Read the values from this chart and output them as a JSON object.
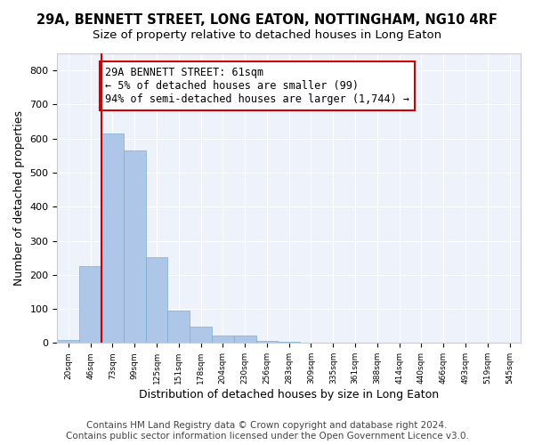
{
  "title1": "29A, BENNETT STREET, LONG EATON, NOTTINGHAM, NG10 4RF",
  "title2": "Size of property relative to detached houses in Long Eaton",
  "xlabel": "Distribution of detached houses by size in Long Eaton",
  "ylabel": "Number of detached properties",
  "bar_values": [
    10,
    225,
    615,
    565,
    252,
    95,
    48,
    22,
    22,
    7,
    3,
    0,
    0,
    0,
    0,
    0,
    0,
    0,
    0,
    0,
    0
  ],
  "bar_labels": [
    "20sqm",
    "46sqm",
    "73sqm",
    "99sqm",
    "125sqm",
    "151sqm",
    "178sqm",
    "204sqm",
    "230sqm",
    "256sqm",
    "283sqm",
    "309sqm",
    "335sqm",
    "361sqm",
    "388sqm",
    "414sqm",
    "440sqm",
    "466sqm",
    "493sqm",
    "519sqm",
    "545sqm"
  ],
  "bar_color": "#aec6e8",
  "bar_edge_color": "#7aaed4",
  "vline_color": "#cc0000",
  "annotation_text": "29A BENNETT STREET: 61sqm\n← 5% of detached houses are smaller (99)\n94% of semi-detached houses are larger (1,744) →",
  "annotation_box_color": "#ffffff",
  "annotation_box_edge": "#cc0000",
  "ylim": [
    0,
    850
  ],
  "yticks": [
    0,
    100,
    200,
    300,
    400,
    500,
    600,
    700,
    800
  ],
  "background_color": "#eef2fa",
  "grid_color": "#ffffff",
  "footer_line1": "Contains HM Land Registry data © Crown copyright and database right 2024.",
  "footer_line2": "Contains public sector information licensed under the Open Government Licence v3.0.",
  "title1_fontsize": 10.5,
  "title2_fontsize": 9.5,
  "xlabel_fontsize": 9,
  "ylabel_fontsize": 9,
  "annotation_fontsize": 8.5,
  "footer_fontsize": 7.5
}
